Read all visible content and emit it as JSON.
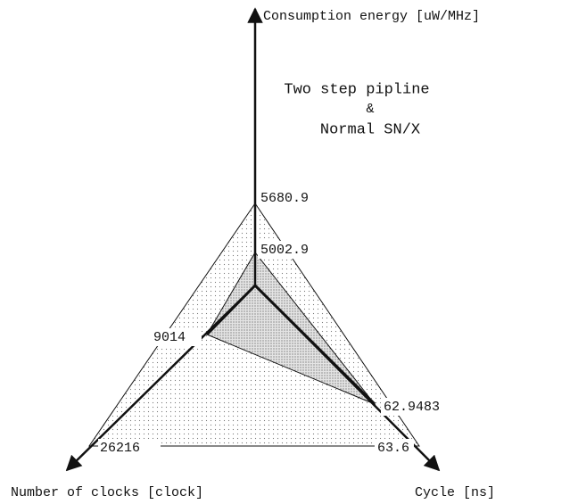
{
  "title": [
    "Two step pipline",
    "&",
    "Normal SN/X"
  ],
  "axes": [
    {
      "label": "Consumption energy [uW/MHz]",
      "outer": "5680.9",
      "inner": "5002.9"
    },
    {
      "label": "Number of clocks [clock]",
      "outer": "26216",
      "inner": "9014"
    },
    {
      "label": "Cycle [ns]",
      "outer": "63.6",
      "inner": "62.9483"
    }
  ]
}
